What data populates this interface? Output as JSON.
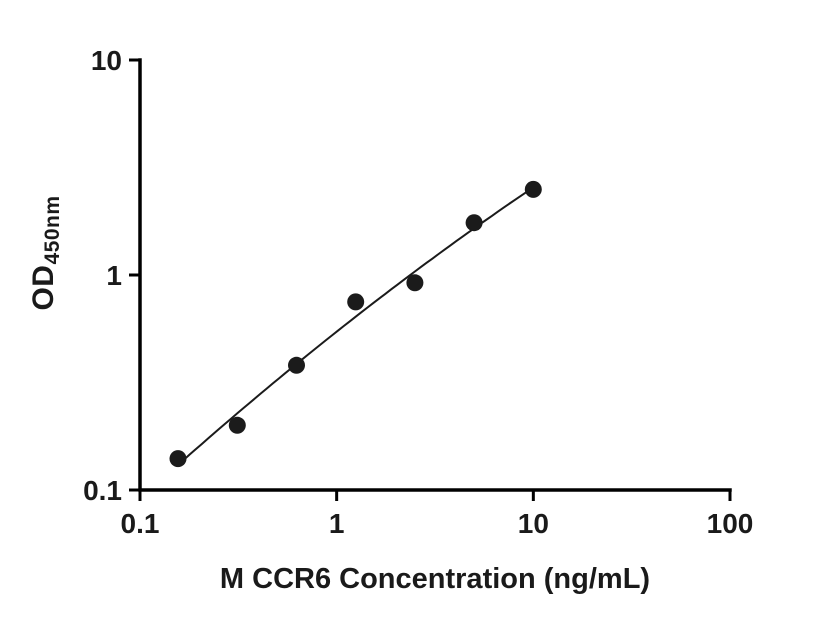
{
  "chart_data": {
    "type": "scatter",
    "title": "",
    "xlabel": "M CCR6 Concentration (ng/mL)",
    "ylabel": "OD",
    "ylabel_subscript": "450nm",
    "xscale": "log",
    "yscale": "log",
    "xlim": [
      0.1,
      100
    ],
    "ylim": [
      0.1,
      10
    ],
    "x_ticks": [
      0.1,
      1,
      10,
      100
    ],
    "x_tick_labels": [
      "0.1",
      "1",
      "10",
      "100"
    ],
    "y_ticks": [
      0.1,
      1,
      10
    ],
    "y_tick_labels": [
      "0.1",
      "1",
      "10"
    ],
    "grid": false,
    "legend": false,
    "fit_curve": "smooth-fit-through-points",
    "colors": {
      "points": "#1b1b1b",
      "curve": "#1b1b1b",
      "axis": "#000000",
      "text": "#1a1a1a",
      "background": "#ffffff"
    },
    "points": [
      {
        "x": 0.156,
        "y": 0.14
      },
      {
        "x": 0.3125,
        "y": 0.2
      },
      {
        "x": 0.625,
        "y": 0.38
      },
      {
        "x": 1.25,
        "y": 0.75
      },
      {
        "x": 2.5,
        "y": 0.92
      },
      {
        "x": 5,
        "y": 1.75
      },
      {
        "x": 10,
        "y": 2.5
      }
    ]
  }
}
